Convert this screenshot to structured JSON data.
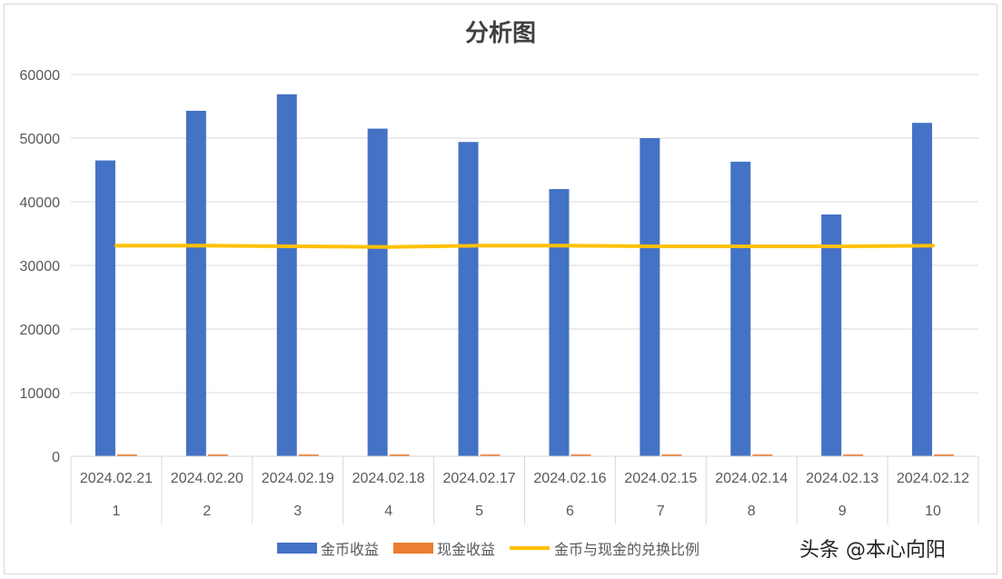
{
  "chart_data": {
    "type": "bar",
    "title": "分析图",
    "categories": [
      "1",
      "2",
      "3",
      "4",
      "5",
      "6",
      "7",
      "8",
      "9",
      "10"
    ],
    "category_dates": [
      "2024.02.21",
      "2024.02.20",
      "2024.02.19",
      "2024.02.18",
      "2024.02.17",
      "2024.02.16",
      "2024.02.15",
      "2024.02.14",
      "2024.02.13",
      "2024.02.12"
    ],
    "yticks": [
      "0",
      "10000",
      "20000",
      "30000",
      "40000",
      "50000",
      "60000"
    ],
    "ylim": [
      0,
      60000
    ],
    "grid": true,
    "legend_position": "bottom",
    "series": [
      {
        "name": "金币收益",
        "type": "bar",
        "color": "#4472c4",
        "values": [
          46500,
          54300,
          56900,
          51500,
          49400,
          42000,
          50000,
          46300,
          38000,
          52400
        ]
      },
      {
        "name": "现金收益",
        "type": "bar",
        "color": "#ed7d31",
        "values": [
          4.65,
          5.43,
          5.69,
          5.15,
          4.94,
          4.2,
          5.0,
          4.63,
          3.8,
          5.24
        ]
      },
      {
        "name": "金币与现金的兑换比例",
        "type": "line",
        "color": "#ffc000",
        "values": [
          33100,
          33100,
          33000,
          32900,
          33100,
          33100,
          33000,
          33000,
          33000,
          33100
        ]
      }
    ]
  },
  "watermark": "头条 @本心向阳"
}
